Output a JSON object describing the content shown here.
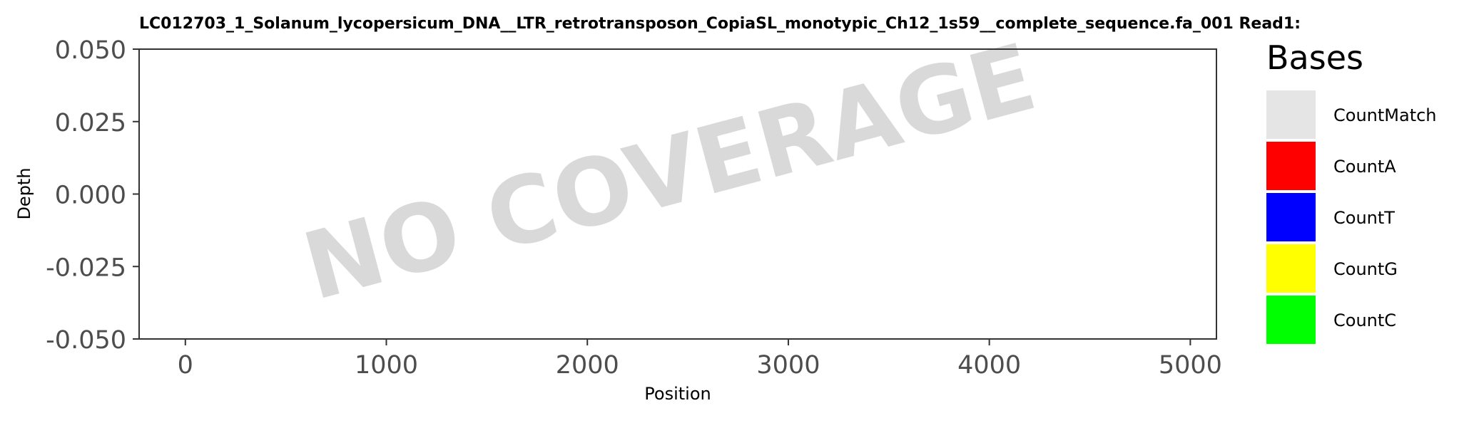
{
  "chart_data": {
    "type": "bar",
    "title": "LC012703_1_Solanum_lycopersicum_DNA__LTR_retrotransposon_CopiaSL_monotypic_Ch12_1s59__complete_sequence.fa_001    Read1:",
    "xlabel": "Position",
    "ylabel": "Depth",
    "xlim": [
      -230,
      5130
    ],
    "ylim": [
      -0.05,
      0.05
    ],
    "x_ticks": [
      0,
      1000,
      2000,
      3000,
      4000,
      5000
    ],
    "x_tick_labels": [
      "0",
      "1000",
      "2000",
      "3000",
      "4000",
      "5000"
    ],
    "y_ticks": [
      -0.05,
      -0.025,
      0,
      0.025,
      0.05
    ],
    "y_tick_labels": [
      "-0.050",
      "-0.025",
      "0.000",
      "0.025",
      "0.050"
    ],
    "series": [],
    "watermark": "NO COVERAGE",
    "grid": false,
    "legend": {
      "title": "Bases",
      "position": "right",
      "entries": [
        {
          "label": "CountMatch",
          "color": "#e5e5e5"
        },
        {
          "label": "CountA",
          "color": "#ff0000"
        },
        {
          "label": "CountT",
          "color": "#0000ff"
        },
        {
          "label": "CountG",
          "color": "#ffff00"
        },
        {
          "label": "CountC",
          "color": "#00ff00"
        }
      ]
    }
  }
}
